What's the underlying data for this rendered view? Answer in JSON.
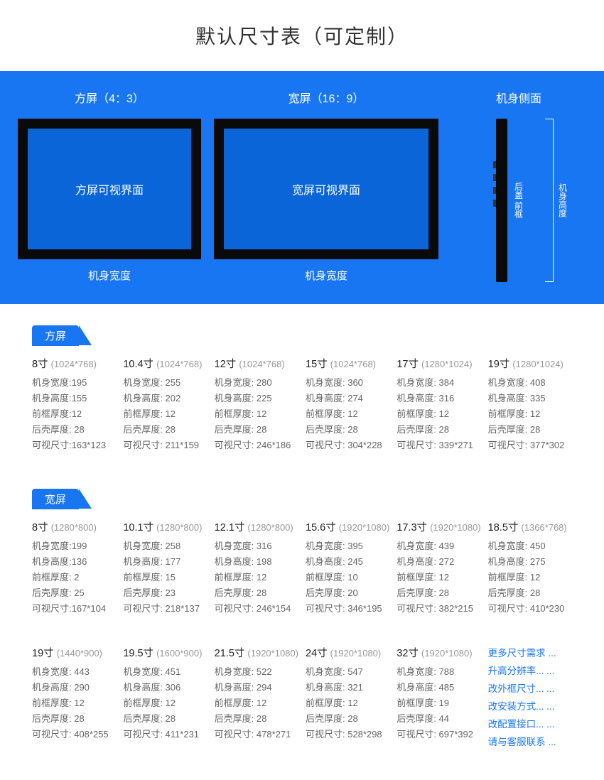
{
  "title": "默认尺寸表（可定制）",
  "hero": {
    "square": {
      "label": "方屏（4：3）",
      "innerText": "方屏可视界面",
      "bottom": "机身宽度"
    },
    "wide": {
      "label": "宽屏（16：9）",
      "innerText": "宽屏可视界面",
      "bottom": "机身宽度"
    },
    "side": {
      "label": "机身侧面",
      "textA": "后盖  前框",
      "textB": "机身高度"
    }
  },
  "sections": {
    "square": {
      "tab": "方屏",
      "rows": [
        [
          {
            "size": "8寸",
            "res": "(1024*768)",
            "w": "机身宽度:195",
            "h": "机身高度:155",
            "front": "前框厚度:12",
            "back": "后壳厚度: 28",
            "view": "可视尺寸:163*123"
          },
          {
            "size": "10.4寸",
            "res": "(1024*768)",
            "w": "机身宽度: 255",
            "h": "机身高度: 202",
            "front": "前框厚度: 12",
            "back": "后壳厚度: 28",
            "view": "可视尺寸: 211*159"
          },
          {
            "size": "12寸",
            "res": "(1024*768)",
            "w": "机身宽度: 280",
            "h": "机身高度: 225",
            "front": "前框厚度: 12",
            "back": "后壳厚度: 28",
            "view": "可视尺寸: 246*186"
          },
          {
            "size": "15寸",
            "res": "(1024*768)",
            "w": "机身宽度: 360",
            "h": "机身高度: 274",
            "front": "前框厚度: 12",
            "back": "后壳厚度: 28",
            "view": "可视尺寸: 304*228"
          },
          {
            "size": "17寸",
            "res": " (1280*1024)",
            "w": "机身宽度: 384",
            "h": "机身高度: 316",
            "front": "前框厚度: 12",
            "back": "后壳厚度: 28",
            "view": "可视尺寸: 339*271"
          },
          {
            "size": "19寸",
            "res": " (1280*1024)",
            "w": "机身宽度: 408",
            "h": "机身高度: 335",
            "front": "前框厚度: 12",
            "back": "后壳厚度: 28",
            "view": "可视尺寸: 377*302"
          }
        ]
      ]
    },
    "wide": {
      "tab": "宽屏",
      "rows": [
        [
          {
            "size": "8寸",
            "res": "(1280*800)",
            "w": "机身宽度:199",
            "h": "机身高度:136",
            "front": "前框厚度: 2",
            "back": "后壳厚度: 25",
            "view": "可视尺寸:167*104"
          },
          {
            "size": "10.1寸",
            "res": "(1280*800)",
            "w": "机身宽度: 258",
            "h": "机身高度: 177",
            "front": "前框厚度: 15",
            "back": "后壳厚度: 23",
            "view": "可视尺寸: 218*137"
          },
          {
            "size": "12.1寸",
            "res": "(1280*800)",
            "w": "机身宽度: 316",
            "h": "机身高度: 198",
            "front": "前框厚度: 12",
            "back": "后壳厚度: 28",
            "view": "可视尺寸: 246*154"
          },
          {
            "size": "15.6寸",
            "res": "(1920*1080)",
            "w": "机身宽度: 395",
            "h": "机身高度: 245",
            "front": "前框厚度: 10",
            "back": "后壳厚度: 20",
            "view": "可视尺寸: 346*195"
          },
          {
            "size": "17.3寸",
            "res": "(1920*1080)",
            "w": "机身宽度: 439",
            "h": "机身高度: 272",
            "front": "前框厚度: 12",
            "back": "后壳厚度: 28",
            "view": "可视尺寸: 382*215"
          },
          {
            "size": "18.5寸",
            "res": "(1366*768)",
            "w": "机身宽度: 450",
            "h": "机身高度: 275",
            "front": "前框厚度: 12",
            "back": "后壳厚度: 28",
            "view": "可视尺寸: 410*230"
          }
        ],
        [
          {
            "size": "19寸",
            "res": "(1440*900)",
            "w": "机身宽度: 443",
            "h": "机身高度: 290",
            "front": "前框厚度: 12",
            "back": "后壳厚度: 28",
            "view": "可视尺寸: 408*255"
          },
          {
            "size": "19.5寸",
            "res": "(1600*900)",
            "w": "机身宽度: 451",
            "h": "机身高度: 306",
            "front": "前框厚度: 12",
            "back": "后壳厚度: 28",
            "view": "可视尺寸: 411*231"
          },
          {
            "size": "21.5寸",
            "res": "(1920*1080)",
            "w": "机身宽度: 522",
            "h": "机身高度: 294",
            "front": "前框厚度: 12",
            "back": "后壳厚度: 28",
            "view": "可视尺寸: 478*271"
          },
          {
            "size": "24寸",
            "res": "(1920*1080)",
            "w": "机身宽度: 547",
            "h": "机身高度: 321",
            "front": "前框厚度: 12",
            "back": "后壳厚度: 28",
            "view": "可视尺寸: 528*298"
          },
          {
            "size": "32寸",
            "res": "(1920*1080)",
            "w": "机身宽度: 788",
            "h": "机身高度: 485",
            "front": "前框厚度: 19",
            "back": "后壳厚度: 44",
            "view": "可视尺寸: 697*392"
          }
        ]
      ]
    }
  },
  "more": [
    "更多尺寸需求 ...",
    "升高分辨率... ...",
    "改外框尺寸... ...",
    "改安装方式... ...",
    "改配置接口... ...",
    "请与客服联系 ..."
  ],
  "colors": {
    "primary": "#1976f2",
    "screen": "#0a66d8",
    "frame": "#0a0a0a",
    "textDark": "#222222",
    "textGray": "#666666",
    "textLight": "#999999"
  }
}
